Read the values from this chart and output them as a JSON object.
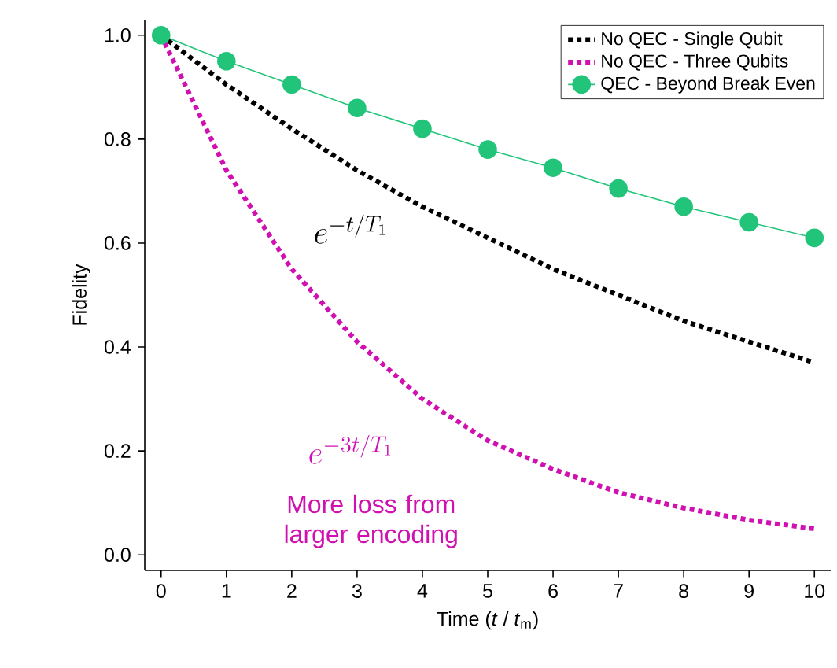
{
  "chart_data": {
    "type": "line",
    "xlabel": "Time (*t* / *t*$_{m}$)",
    "ylabel": "Fidelity",
    "x": [
      0,
      1,
      2,
      3,
      4,
      5,
      6,
      7,
      8,
      9,
      10
    ],
    "series": [
      {
        "name": "No QEC - Single Qubit",
        "color": "#000000",
        "line_style": "dotted",
        "marker": "none",
        "values": [
          1.0,
          0.905,
          0.82,
          0.74,
          0.67,
          0.61,
          0.55,
          0.5,
          0.45,
          0.41,
          0.37
        ]
      },
      {
        "name": "No QEC - Three Qubits",
        "color": "#d010b0",
        "line_style": "dotted",
        "marker": "none",
        "values": [
          1.0,
          0.74,
          0.55,
          0.41,
          0.3,
          0.22,
          0.165,
          0.12,
          0.09,
          0.067,
          0.05
        ]
      },
      {
        "name": "QEC - Beyond Break Even",
        "color": "#22c47a",
        "line_style": "solid",
        "marker": "circle",
        "values": [
          1.0,
          0.95,
          0.905,
          0.86,
          0.82,
          0.78,
          0.745,
          0.705,
          0.67,
          0.64,
          0.61
        ]
      }
    ],
    "xlim": [
      -0.25,
      10.25
    ],
    "ylim": [
      -0.03,
      1.03
    ],
    "xticks": [
      0,
      1,
      2,
      3,
      4,
      5,
      6,
      7,
      8,
      9,
      10
    ],
    "yticks": [
      {
        "value": 0,
        "label": "0.0"
      },
      {
        "value": 0.2,
        "label": "0.2"
      },
      {
        "value": 0.4,
        "label": "0.4"
      },
      {
        "value": 0.6,
        "label": "0.6"
      },
      {
        "value": 0.8,
        "label": "0.8"
      },
      {
        "value": 1,
        "label": "1.0"
      }
    ],
    "annotations": [
      "e^{-t/T_1}",
      "e^{-3t/T_1}",
      "More loss from larger encoding"
    ],
    "legend": "top right",
    "grid": false
  }
}
